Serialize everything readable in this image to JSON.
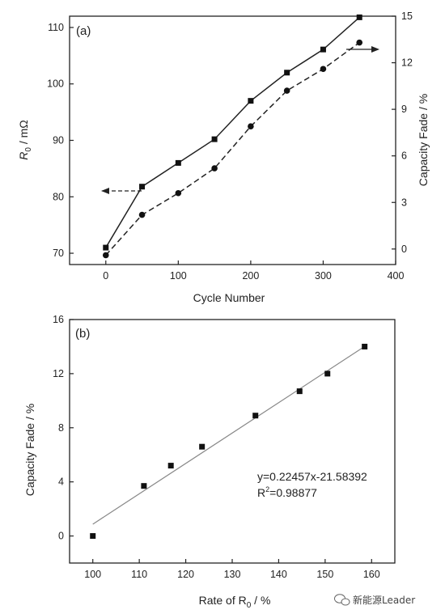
{
  "chart_data": [
    {
      "type": "line",
      "panel_label": "(a)",
      "xlabel": "Cycle Number",
      "ylabel_left": {
        "main": "R",
        "sub": "0",
        "rest": " / mΩ"
      },
      "ylabel_right": "Capacity Fade / %",
      "xlim": [
        -50,
        400
      ],
      "ylim_left": [
        68,
        112
      ],
      "ylim_right": [
        -1,
        15
      ],
      "xticks": [
        0,
        100,
        200,
        300,
        400
      ],
      "yticks_left": [
        70,
        80,
        90,
        100,
        110
      ],
      "yticks_right": [
        0,
        3,
        6,
        9,
        12,
        15
      ],
      "series": [
        {
          "axis": "left",
          "marker": "square",
          "line": "solid",
          "x": [
            0,
            50,
            100,
            150,
            200,
            250,
            300,
            350
          ],
          "values": [
            71.0,
            81.8,
            86.0,
            90.2,
            97.0,
            102.0,
            106.1,
            111.8
          ]
        },
        {
          "axis": "right",
          "marker": "circle",
          "line": "dashed",
          "x": [
            0,
            50,
            100,
            150,
            200,
            250,
            300,
            350
          ],
          "values": [
            -0.4,
            2.2,
            3.6,
            5.2,
            7.9,
            10.2,
            11.6,
            13.3
          ]
        }
      ]
    },
    {
      "type": "scatter",
      "panel_label": "(b)",
      "xlabel": {
        "main": "Rate of R",
        "sub": "0",
        "rest": " / %"
      },
      "ylabel": "Capacity Fade / %",
      "xlim": [
        95,
        165
      ],
      "ylim": [
        -2,
        16
      ],
      "xticks": [
        100,
        110,
        120,
        130,
        140,
        150,
        160
      ],
      "yticks": [
        0,
        4,
        8,
        12,
        16
      ],
      "x": [
        100,
        111,
        116.8,
        123.5,
        135,
        144.5,
        150.5,
        158.5
      ],
      "values": [
        0,
        3.7,
        5.2,
        6.6,
        8.9,
        10.7,
        12.0,
        14.0
      ],
      "fit": {
        "slope": 0.22457,
        "intercept": -21.58392,
        "x_range": [
          100,
          158.5
        ]
      },
      "annotation": {
        "equation": "y=0.22457x-21.58392",
        "r2_main": "R",
        "r2_sup": "2",
        "r2_rest": "=0.98877"
      }
    }
  ],
  "watermark": "新能源Leader"
}
